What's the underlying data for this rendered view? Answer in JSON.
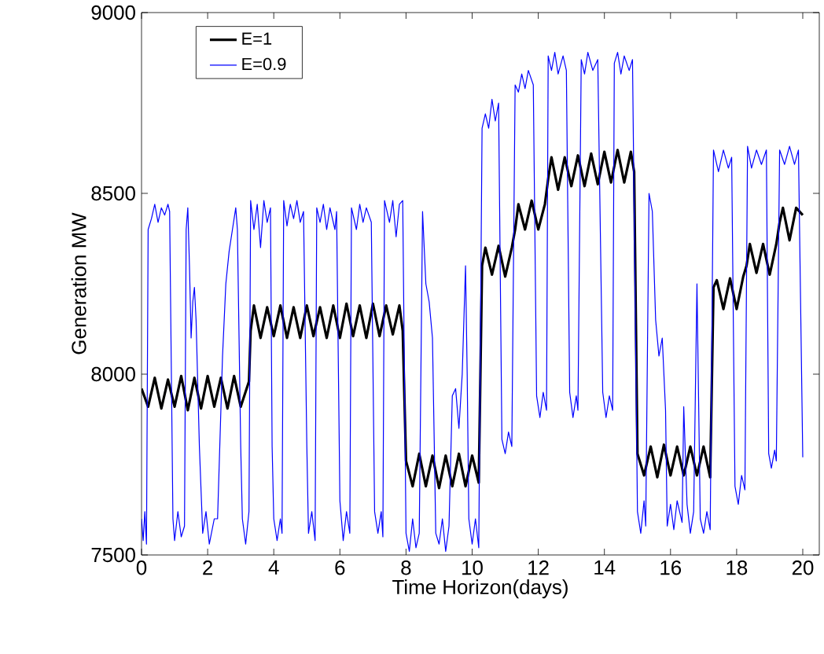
{
  "chart_data": {
    "type": "line",
    "xlabel": "Time Horizon(days)",
    "ylabel": "Generation  MW",
    "xlim": [
      0,
      20.5
    ],
    "ylim": [
      7500,
      9000
    ],
    "xticks": [
      0,
      2,
      4,
      6,
      8,
      10,
      12,
      14,
      16,
      18,
      20
    ],
    "yticks": [
      7500,
      8000,
      8500,
      9000
    ],
    "grid": false,
    "legend": "top left",
    "marker": "none",
    "line_style": "solid",
    "series": [
      {
        "name": "E=1",
        "color": "#000000",
        "x": [
          0,
          0.2,
          0.4,
          0.6,
          0.8,
          1.0,
          1.2,
          1.4,
          1.6,
          1.8,
          2.0,
          2.2,
          2.4,
          2.6,
          2.8,
          3.0,
          3.25,
          3.3,
          3.4,
          3.6,
          3.8,
          4.0,
          4.2,
          4.4,
          4.6,
          4.8,
          5.0,
          5.2,
          5.4,
          5.6,
          5.8,
          6.0,
          6.2,
          6.4,
          6.6,
          6.8,
          7.0,
          7.2,
          7.4,
          7.6,
          7.8,
          7.9,
          8.0,
          8.2,
          8.4,
          8.6,
          8.8,
          9.0,
          9.2,
          9.4,
          9.6,
          9.8,
          10.0,
          10.2,
          10.3,
          10.4,
          10.6,
          10.8,
          11.0,
          11.2,
          11.3,
          11.4,
          11.6,
          11.8,
          12.0,
          12.2,
          12.3,
          12.4,
          12.6,
          12.8,
          13.0,
          13.2,
          13.4,
          13.6,
          13.8,
          14.0,
          14.2,
          14.4,
          14.6,
          14.8,
          14.9,
          15.0,
          15.2,
          15.4,
          15.6,
          15.8,
          16.0,
          16.2,
          16.4,
          16.6,
          16.8,
          17.0,
          17.2,
          17.3,
          17.4,
          17.6,
          17.8,
          18.0,
          18.2,
          18.3,
          18.4,
          18.6,
          18.8,
          19.0,
          19.2,
          19.3,
          19.4,
          19.6,
          19.8,
          20.0
        ],
        "values": [
          7960,
          7910,
          7990,
          7905,
          7985,
          7910,
          7995,
          7900,
          7990,
          7905,
          7995,
          7910,
          7990,
          7905,
          7995,
          7910,
          7980,
          8120,
          8190,
          8100,
          8185,
          8105,
          8190,
          8100,
          8185,
          8100,
          8190,
          8105,
          8185,
          8100,
          8190,
          8100,
          8195,
          8105,
          8190,
          8100,
          8195,
          8105,
          8190,
          8110,
          8190,
          8120,
          7760,
          7690,
          7780,
          7690,
          7775,
          7685,
          7775,
          7690,
          7780,
          7690,
          7775,
          7700,
          8300,
          8350,
          8275,
          8355,
          8270,
          8350,
          8400,
          8470,
          8400,
          8480,
          8400,
          8470,
          8540,
          8600,
          8510,
          8600,
          8520,
          8605,
          8520,
          8610,
          8525,
          8615,
          8530,
          8620,
          8530,
          8615,
          8560,
          7780,
          7720,
          7800,
          7715,
          7805,
          7720,
          7800,
          7720,
          7800,
          7720,
          7800,
          7715,
          8240,
          8260,
          8180,
          8265,
          8180,
          8270,
          8300,
          8360,
          8280,
          8360,
          8275,
          8360,
          8420,
          8460,
          8370,
          8460,
          8440
        ]
      },
      {
        "name": "E=0.9",
        "color": "#0000ff",
        "x": [
          0,
          0.05,
          0.1,
          0.15,
          0.2,
          0.3,
          0.4,
          0.5,
          0.6,
          0.7,
          0.8,
          0.85,
          0.95,
          1.0,
          1.1,
          1.2,
          1.3,
          1.35,
          1.4,
          1.45,
          1.5,
          1.55,
          1.6,
          1.65,
          1.75,
          1.85,
          1.95,
          2.05,
          2.2,
          2.3,
          2.45,
          2.55,
          2.65,
          2.75,
          2.85,
          2.9,
          3.0,
          3.05,
          3.15,
          3.25,
          3.3,
          3.4,
          3.5,
          3.6,
          3.7,
          3.8,
          3.9,
          3.95,
          4.0,
          4.1,
          4.2,
          4.25,
          4.3,
          4.4,
          4.5,
          4.6,
          4.7,
          4.8,
          4.9,
          5.0,
          5.05,
          5.15,
          5.25,
          5.3,
          5.4,
          5.5,
          5.6,
          5.7,
          5.85,
          5.9,
          6.0,
          6.1,
          6.2,
          6.3,
          6.35,
          6.5,
          6.6,
          6.7,
          6.8,
          6.95,
          7.05,
          7.15,
          7.25,
          7.3,
          7.35,
          7.5,
          7.6,
          7.7,
          7.8,
          7.9,
          8.0,
          8.1,
          8.2,
          8.3,
          8.4,
          8.5,
          8.6,
          8.7,
          8.8,
          8.9,
          9.0,
          9.1,
          9.2,
          9.3,
          9.4,
          9.5,
          9.6,
          9.7,
          9.8,
          9.85,
          9.9,
          10.0,
          10.1,
          10.2,
          10.3,
          10.4,
          10.5,
          10.6,
          10.7,
          10.8,
          10.9,
          11.0,
          11.1,
          11.2,
          11.3,
          11.4,
          11.5,
          11.6,
          11.7,
          11.85,
          11.95,
          12.05,
          12.15,
          12.25,
          12.3,
          12.4,
          12.5,
          12.6,
          12.75,
          12.85,
          12.95,
          13.05,
          13.15,
          13.2,
          13.3,
          13.4,
          13.5,
          13.65,
          13.8,
          13.95,
          14.05,
          14.15,
          14.25,
          14.3,
          14.4,
          14.5,
          14.6,
          14.75,
          14.85,
          15.0,
          15.1,
          15.2,
          15.25,
          15.35,
          15.45,
          15.55,
          15.65,
          15.75,
          15.85,
          15.9,
          16.0,
          16.1,
          16.2,
          16.35,
          16.4,
          16.5,
          16.6,
          16.7,
          16.8,
          16.9,
          17.0,
          17.1,
          17.2,
          17.3,
          17.45,
          17.6,
          17.75,
          17.85,
          17.95,
          18.05,
          18.15,
          18.25,
          18.33,
          18.45,
          18.6,
          18.75,
          18.9,
          18.97,
          19.05,
          19.15,
          19.2,
          19.3,
          19.45,
          19.6,
          19.75,
          19.87,
          20.0
        ],
        "values": [
          7600,
          7540,
          7620,
          7530,
          8400,
          8430,
          8470,
          8420,
          8460,
          8440,
          8470,
          8450,
          7600,
          7540,
          7620,
          7550,
          7580,
          8400,
          8460,
          8300,
          8100,
          8200,
          8240,
          8150,
          7800,
          7560,
          7620,
          7530,
          7600,
          7600,
          8050,
          8250,
          8340,
          8400,
          8460,
          8400,
          7800,
          7600,
          7530,
          7620,
          8480,
          8400,
          8470,
          8350,
          8480,
          8420,
          8460,
          7800,
          7600,
          7540,
          7600,
          7560,
          8480,
          8410,
          8470,
          8430,
          8480,
          8420,
          8450,
          7800,
          7560,
          7620,
          7540,
          8460,
          8420,
          8470,
          8400,
          8460,
          8400,
          8450,
          7650,
          7540,
          7620,
          7560,
          8460,
          8400,
          8470,
          8420,
          8460,
          8420,
          7620,
          7560,
          7620,
          7550,
          8480,
          8420,
          8480,
          8380,
          8470,
          8480,
          7560,
          7510,
          7600,
          7520,
          7560,
          8450,
          8250,
          8200,
          8100,
          7560,
          7530,
          7600,
          7510,
          7580,
          7940,
          7960,
          7850,
          8000,
          8300,
          8000,
          7600,
          7530,
          7600,
          7520,
          8680,
          8720,
          8680,
          8760,
          8700,
          8750,
          7820,
          7780,
          7840,
          7800,
          8800,
          8780,
          8830,
          8790,
          8840,
          8800,
          7940,
          7880,
          7950,
          7900,
          8880,
          8840,
          8890,
          8830,
          8880,
          8840,
          7950,
          7880,
          7940,
          7900,
          8870,
          8830,
          8890,
          8840,
          8870,
          7950,
          7880,
          7940,
          7900,
          8860,
          8890,
          8830,
          8880,
          8840,
          8870,
          7620,
          7560,
          7650,
          7580,
          8500,
          8450,
          8150,
          8050,
          8100,
          7900,
          7580,
          7640,
          7570,
          7650,
          7590,
          7910,
          7640,
          7560,
          7620,
          8250,
          7600,
          7560,
          7620,
          7570,
          8620,
          8560,
          8620,
          8570,
          8600,
          7690,
          7640,
          7720,
          7680,
          8630,
          8570,
          8620,
          8580,
          8620,
          7780,
          7740,
          7790,
          7760,
          8620,
          8580,
          8630,
          8580,
          8620,
          7770
        ]
      }
    ]
  }
}
